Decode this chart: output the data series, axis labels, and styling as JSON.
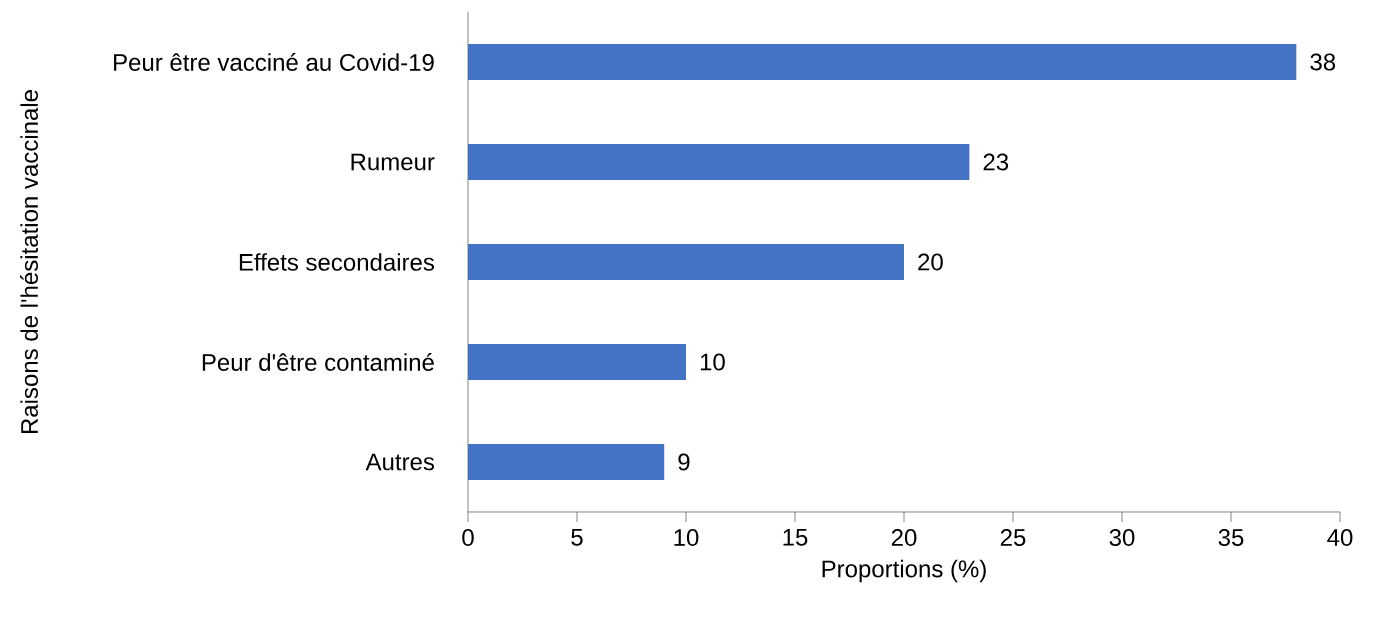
{
  "chart_data": {
    "type": "bar",
    "orientation": "horizontal",
    "xlabel": "Proportions (%)",
    "ylabel": "Raisons de l'hésitation vaccinale",
    "categories": [
      "Peur être vacciné au Covid-19",
      "Rumeur",
      "Effets secondaires",
      "Peur d'être contaminé",
      "Autres"
    ],
    "values": [
      38,
      23,
      20,
      10,
      9
    ],
    "color": "#4472c4",
    "data_labels": true,
    "xlim": [
      0,
      40
    ],
    "xticks": [
      0,
      5,
      10,
      15,
      20,
      25,
      30,
      35,
      40
    ],
    "grid": false
  }
}
